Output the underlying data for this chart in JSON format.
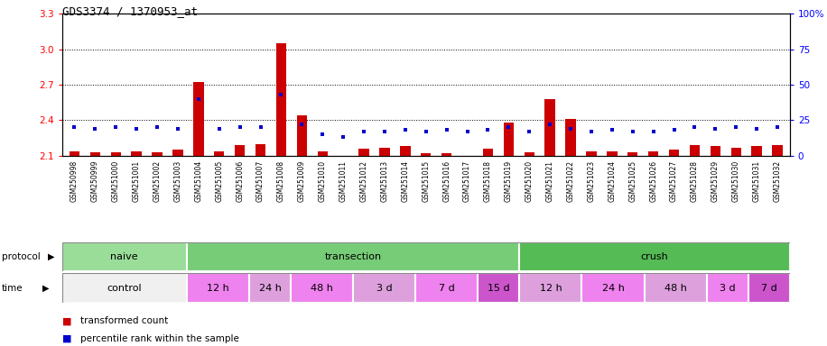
{
  "title": "GDS3374 / 1370953_at",
  "samples": [
    "GSM250998",
    "GSM250999",
    "GSM251000",
    "GSM251001",
    "GSM251002",
    "GSM251003",
    "GSM251004",
    "GSM251005",
    "GSM251006",
    "GSM251007",
    "GSM251008",
    "GSM251009",
    "GSM251010",
    "GSM251011",
    "GSM251012",
    "GSM251013",
    "GSM251014",
    "GSM251015",
    "GSM251016",
    "GSM251017",
    "GSM251018",
    "GSM251019",
    "GSM251020",
    "GSM251021",
    "GSM251022",
    "GSM251023",
    "GSM251024",
    "GSM251025",
    "GSM251026",
    "GSM251027",
    "GSM251028",
    "GSM251029",
    "GSM251030",
    "GSM251031",
    "GSM251032"
  ],
  "red_values": [
    2.14,
    2.13,
    2.13,
    2.14,
    2.13,
    2.15,
    2.72,
    2.14,
    2.19,
    2.2,
    3.05,
    2.44,
    2.14,
    2.02,
    2.16,
    2.17,
    2.18,
    2.12,
    2.12,
    2.1,
    2.16,
    2.38,
    2.13,
    2.58,
    2.41,
    2.14,
    2.14,
    2.13,
    2.14,
    2.15,
    2.19,
    2.18,
    2.17,
    2.18,
    2.19
  ],
  "blue_values": [
    20,
    19,
    20,
    19,
    20,
    19,
    40,
    19,
    20,
    20,
    43,
    22,
    15,
    13,
    17,
    17,
    18,
    17,
    18,
    17,
    18,
    20,
    17,
    22,
    19,
    17,
    18,
    17,
    17,
    18,
    20,
    19,
    20,
    19,
    20
  ],
  "ylim_left": [
    2.1,
    3.3
  ],
  "ylim_right": [
    0,
    100
  ],
  "yticks_left": [
    2.1,
    2.4,
    2.7,
    3.0,
    3.3
  ],
  "yticks_right": [
    0,
    25,
    50,
    75,
    100
  ],
  "ytick_labels_right": [
    "0",
    "25",
    "50",
    "75",
    "100%"
  ],
  "protocol_groups": [
    {
      "label": "naive",
      "start": 0,
      "end": 6,
      "color": "#99DD99"
    },
    {
      "label": "transection",
      "start": 6,
      "end": 22,
      "color": "#77CC77"
    },
    {
      "label": "crush",
      "start": 22,
      "end": 35,
      "color": "#55BB55"
    }
  ],
  "time_groups": [
    {
      "label": "control",
      "start": 0,
      "end": 6,
      "color": "#f0f0f0"
    },
    {
      "label": "12 h",
      "start": 6,
      "end": 9,
      "color": "#EE82EE"
    },
    {
      "label": "24 h",
      "start": 9,
      "end": 11,
      "color": "#DDA0DD"
    },
    {
      "label": "48 h",
      "start": 11,
      "end": 14,
      "color": "#EE82EE"
    },
    {
      "label": "3 d",
      "start": 14,
      "end": 17,
      "color": "#DDA0DD"
    },
    {
      "label": "7 d",
      "start": 17,
      "end": 20,
      "color": "#EE82EE"
    },
    {
      "label": "15 d",
      "start": 20,
      "end": 22,
      "color": "#CC55CC"
    },
    {
      "label": "12 h",
      "start": 22,
      "end": 25,
      "color": "#DDA0DD"
    },
    {
      "label": "24 h",
      "start": 25,
      "end": 28,
      "color": "#EE82EE"
    },
    {
      "label": "48 h",
      "start": 28,
      "end": 31,
      "color": "#DDA0DD"
    },
    {
      "label": "3 d",
      "start": 31,
      "end": 33,
      "color": "#EE82EE"
    },
    {
      "label": "7 d",
      "start": 33,
      "end": 35,
      "color": "#CC55CC"
    }
  ],
  "red_color": "#CC0000",
  "blue_color": "#0000CC",
  "bar_width": 0.5,
  "base_value": 2.1,
  "bg_color": "#ffffff"
}
